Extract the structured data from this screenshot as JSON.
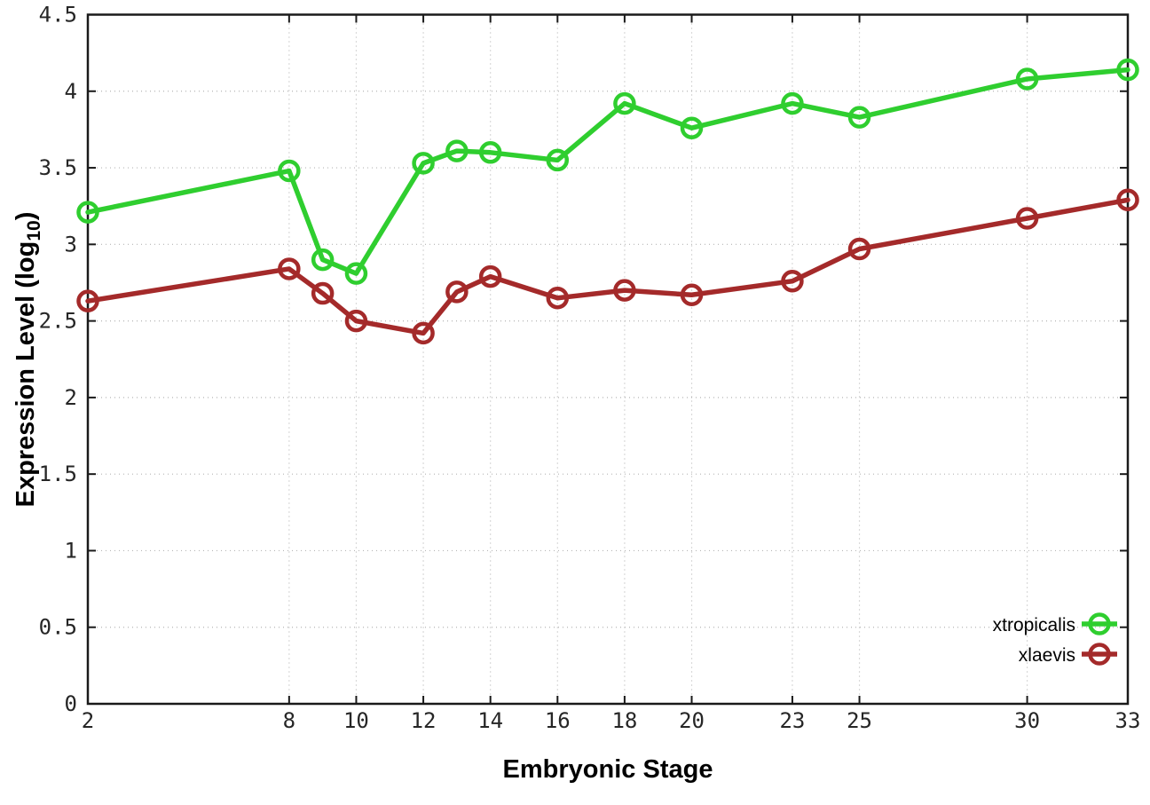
{
  "chart_data": {
    "type": "line",
    "title": "",
    "xlabel": "Embryonic Stage",
    "ylabel": {
      "text": "Expression Level (log",
      "sub": "10",
      "close": ")"
    },
    "xlim": [
      2,
      33
    ],
    "ylim": [
      0,
      4.5
    ],
    "grid": true,
    "legend_position": "inside-right-lower",
    "xticks": [
      "2",
      "8",
      "10",
      "12",
      "14",
      "16",
      "18",
      "20",
      "23",
      "25",
      "30",
      "33"
    ],
    "yticks": [
      "0",
      "0.5",
      "1",
      "1.5",
      "2",
      "2.5",
      "3",
      "3.5",
      "4",
      "4.5"
    ],
    "x": [
      2,
      8,
      9,
      10,
      12,
      13,
      14,
      16,
      18,
      20,
      23,
      25,
      30,
      33
    ],
    "series": [
      {
        "name": "xtropicalis",
        "color": "#2fce2f",
        "values": [
          3.21,
          3.48,
          2.9,
          2.81,
          3.53,
          3.61,
          3.6,
          3.55,
          3.92,
          3.76,
          3.92,
          3.83,
          4.08,
          4.14
        ]
      },
      {
        "name": "xlaevis",
        "color": "#a42a2a",
        "values": [
          2.63,
          2.84,
          2.68,
          2.5,
          2.42,
          2.69,
          2.79,
          2.65,
          2.7,
          2.67,
          2.76,
          2.97,
          3.17,
          3.29
        ]
      }
    ]
  }
}
